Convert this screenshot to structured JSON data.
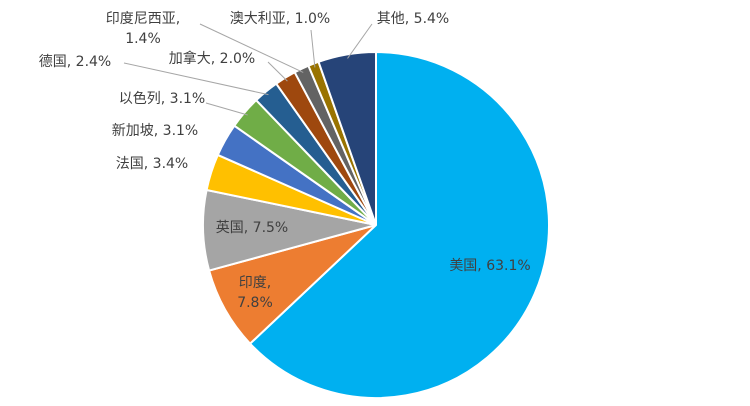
{
  "chart_data": {
    "type": "pie",
    "values": [
      63.1,
      7.8,
      7.5,
      3.4,
      3.1,
      3.1,
      2.4,
      2.0,
      1.4,
      1.0,
      5.4
    ],
    "value_labels": [
      "美国, 63.1%",
      "印度, 7.8%",
      "英国, 7.5%",
      "法国, 3.4%",
      "新加坡, 3.1%",
      "以色列, 3.1%",
      "德国, 2.4%",
      "加拿大, 2.0%",
      "印度尼西亚, 1.4%",
      "澳大利亚, 1.0%",
      "其他, 5.4%"
    ],
    "colors": [
      "#00b0f0",
      "#ed7d31",
      "#a5a5a5",
      "#ffc000",
      "#4472c4",
      "#70ad47",
      "#255e91",
      "#9e480e",
      "#636363",
      "#997300",
      "#264478"
    ]
  }
}
